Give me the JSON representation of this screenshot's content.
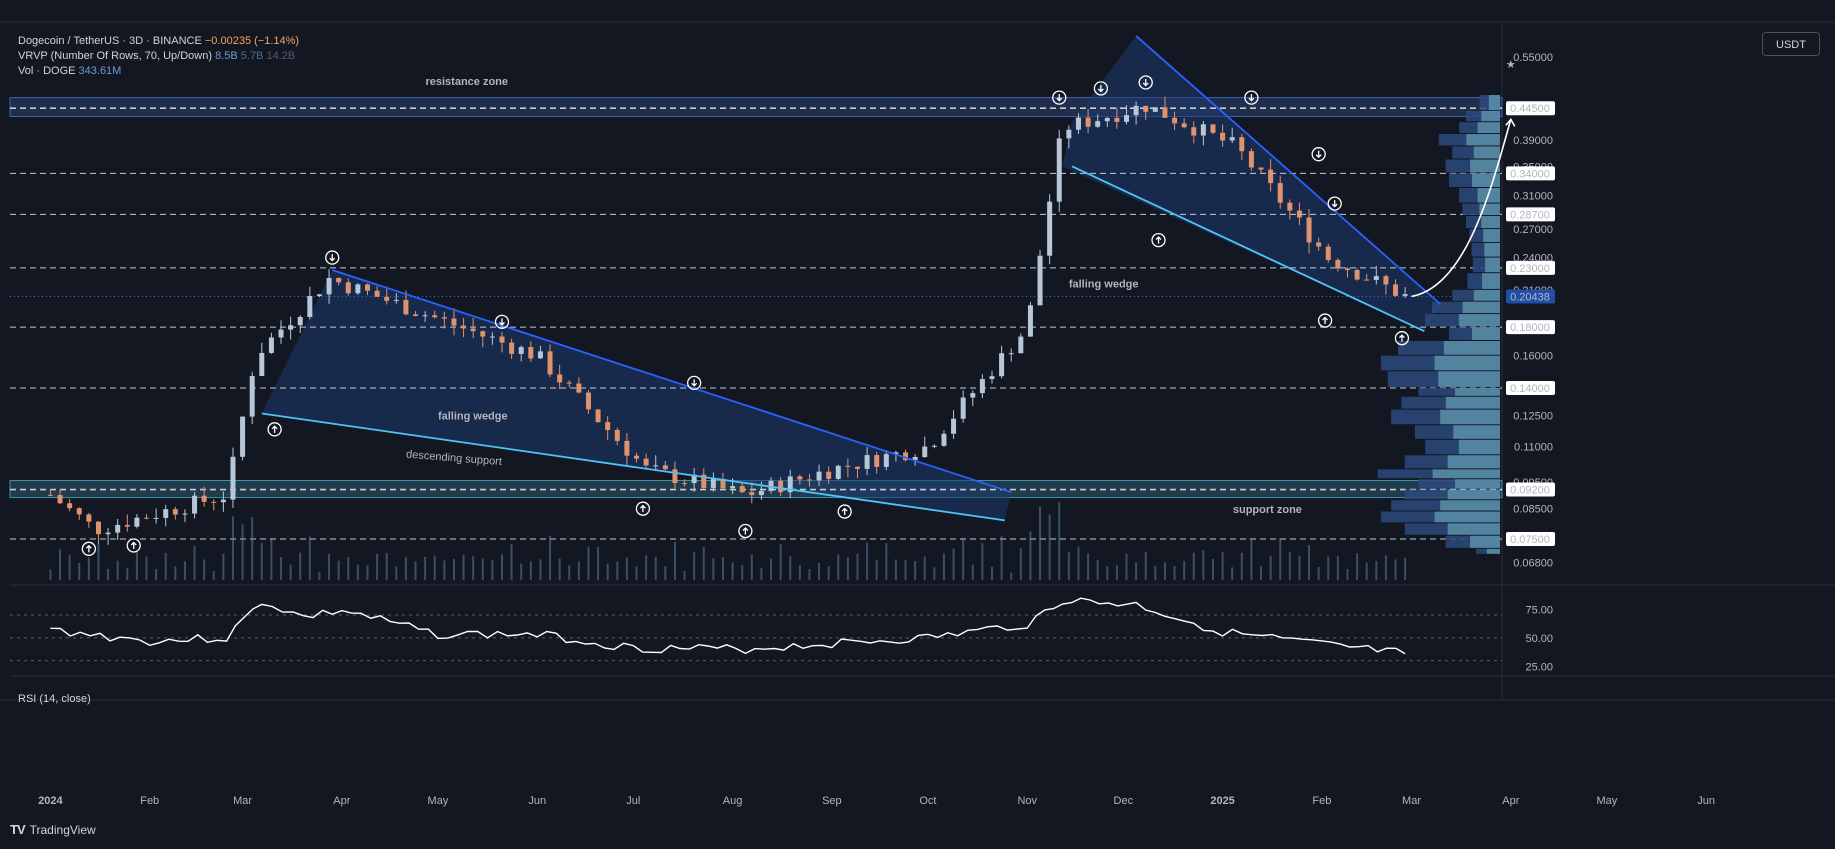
{
  "header": {
    "symbol": "Dogecoin / TetherUS · 3D · BINANCE",
    "change": "−0.00235 (−1.14%)",
    "vrvp_label": "VRVP (Number Of Rows, 70, Up/Down)",
    "vrvp_values": [
      "8.5B",
      "5.7B",
      "14.2B"
    ],
    "vol_label": "Vol · DOGE",
    "vol_value": "343.61M",
    "currency": "USDT"
  },
  "rsi_panel": {
    "label": "RSI (14, close)",
    "ticks": [
      "75.00",
      "50.00",
      "25.00"
    ],
    "levels": [
      70,
      50,
      30
    ],
    "range": [
      20,
      92
    ]
  },
  "annotations": {
    "resistance_zone": "resistance zone",
    "support_zone": "support zone",
    "falling_wedge_1": "falling wedge",
    "falling_wedge_2": "falling wedge",
    "descending_support": "descending support"
  },
  "brand": "TradingView",
  "colors": {
    "background": "#131722",
    "bull": "#b8c7d8",
    "bear": "#e0916e",
    "wedge_line": "#2962ff",
    "support_line": "#4fc3f7",
    "wedge_fill": "#1e3a6e",
    "zone_fill": "#2b3f6e",
    "rsi_line": "#ffffff",
    "price_label_bg": "#1f4fa8"
  },
  "chart_data": {
    "type": "candlestick",
    "pair": "DOGE/USDT",
    "timeframe": "3D",
    "scale": "log",
    "ylim": [
      0.062,
      0.62
    ],
    "x_ticks": [
      "2024",
      "Feb",
      "Mar",
      "Apr",
      "May",
      "Jun",
      "Jul",
      "Aug",
      "Sep",
      "Oct",
      "Nov",
      "Dec",
      "2025",
      "Feb",
      "Mar",
      "Apr",
      "May",
      "Jun"
    ],
    "price_axis_ticks": [
      "0.55000",
      "0.39000",
      "0.35000",
      "0.31000",
      "0.27000",
      "0.24000",
      "0.21000",
      "0.16000",
      "0.12500",
      "0.11000",
      "0.09500",
      "0.08500",
      "0.06800"
    ],
    "level_lines": [
      "0.44500",
      "0.34000",
      "0.28700",
      "0.23000",
      "0.18000",
      "0.14000",
      "0.09200",
      "0.07500"
    ],
    "current_price": "0.20438",
    "zones": [
      {
        "name": "resistance zone",
        "low": 0.43,
        "high": 0.465
      },
      {
        "name": "support zone",
        "low": 0.089,
        "high": 0.0955
      }
    ],
    "pattern_labels": [
      "falling wedge",
      "falling wedge",
      "descending support"
    ],
    "key_points": [
      {
        "date": "2024-01-01",
        "price": 0.09
      },
      {
        "date": "2024-01-15",
        "price": 0.078
      },
      {
        "date": "2024-02-25",
        "price": 0.09
      },
      {
        "date": "2024-03-05",
        "price": 0.16
      },
      {
        "date": "2024-03-28",
        "price": 0.22
      },
      {
        "date": "2024-06-01",
        "price": 0.16
      },
      {
        "date": "2024-07-05",
        "price": 0.1
      },
      {
        "date": "2024-08-05",
        "price": 0.09
      },
      {
        "date": "2024-09-01",
        "price": 0.1
      },
      {
        "date": "2024-10-01",
        "price": 0.11
      },
      {
        "date": "2024-11-01",
        "price": 0.18
      },
      {
        "date": "2024-11-12",
        "price": 0.41
      },
      {
        "date": "2024-12-08",
        "price": 0.45
      },
      {
        "date": "2025-01-05",
        "price": 0.38
      },
      {
        "date": "2025-02-03",
        "price": 0.24
      },
      {
        "date": "2025-02-27",
        "price": 0.2044
      }
    ],
    "rsi_values": [
      {
        "date": "2024-01-01",
        "value": 57
      },
      {
        "date": "2024-02-01",
        "value": 47
      },
      {
        "date": "2024-02-25",
        "value": 50
      },
      {
        "date": "2024-03-07",
        "value": 82
      },
      {
        "date": "2024-03-20",
        "value": 68
      },
      {
        "date": "2024-04-01",
        "value": 74
      },
      {
        "date": "2024-05-01",
        "value": 53
      },
      {
        "date": "2024-06-01",
        "value": 53
      },
      {
        "date": "2024-07-01",
        "value": 41
      },
      {
        "date": "2024-08-05",
        "value": 40
      },
      {
        "date": "2024-09-01",
        "value": 45
      },
      {
        "date": "2024-10-01",
        "value": 50
      },
      {
        "date": "2024-11-01",
        "value": 62
      },
      {
        "date": "2024-11-12",
        "value": 83
      },
      {
        "date": "2024-12-05",
        "value": 79
      },
      {
        "date": "2025-01-01",
        "value": 55
      },
      {
        "date": "2025-02-01",
        "value": 44
      },
      {
        "date": "2025-02-27",
        "value": 36
      }
    ]
  }
}
